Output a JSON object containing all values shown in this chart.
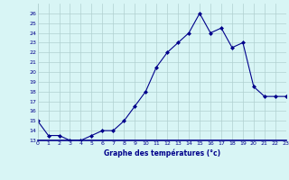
{
  "hours": [
    0,
    1,
    2,
    3,
    4,
    5,
    6,
    7,
    8,
    9,
    10,
    11,
    12,
    13,
    14,
    15,
    16,
    17,
    18,
    19,
    20,
    21,
    22,
    23
  ],
  "temperatures": [
    15,
    13.5,
    13.5,
    13,
    13,
    13.5,
    14,
    14,
    15,
    16.5,
    18,
    20.5,
    22,
    23,
    24,
    26,
    24,
    24.5,
    22.5,
    23,
    18.5,
    17.5,
    17.5,
    17.5
  ],
  "line_color": "#00008B",
  "marker": "D",
  "marker_size": 2,
  "bg_color": "#d8f5f5",
  "grid_color": "#b0d0d0",
  "xlabel": "Graphe des températures (°c)",
  "tick_color": "#00008B",
  "ylim": [
    13,
    27
  ],
  "yticks": [
    13,
    14,
    15,
    16,
    17,
    18,
    19,
    20,
    21,
    22,
    23,
    24,
    25,
    26
  ],
  "xlim": [
    0,
    23
  ],
  "xticks": [
    0,
    1,
    2,
    3,
    4,
    5,
    6,
    7,
    8,
    9,
    10,
    11,
    12,
    13,
    14,
    15,
    16,
    17,
    18,
    19,
    20,
    21,
    22,
    23
  ]
}
